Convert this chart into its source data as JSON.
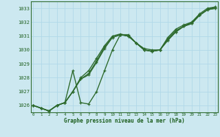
{
  "xlabel": "Graphe pression niveau de la mer (hPa)",
  "bg_color": "#cce8f0",
  "grid_color": "#b0d8e8",
  "line_color": "#2d6a2d",
  "text_color": "#1a5c1a",
  "x_ticks": [
    0,
    1,
    2,
    3,
    4,
    5,
    6,
    7,
    8,
    9,
    10,
    11,
    12,
    13,
    14,
    15,
    16,
    17,
    18,
    19,
    20,
    21,
    22,
    23
  ],
  "y_ticks": [
    1026,
    1027,
    1028,
    1029,
    1030,
    1031,
    1032,
    1033
  ],
  "ylim": [
    1025.5,
    1033.5
  ],
  "xlim": [
    -0.3,
    23.3
  ],
  "series": [
    [
      1026.0,
      1025.8,
      1025.6,
      1026.0,
      1026.2,
      1028.5,
      1026.2,
      1026.1,
      1027.0,
      1028.5,
      1030.0,
      1031.1,
      1031.1,
      1030.5,
      1030.1,
      1030.0,
      1030.0,
      1030.9,
      1031.5,
      1031.8,
      1032.0,
      1032.6,
      1033.0,
      1033.1
    ],
    [
      1026.0,
      1025.8,
      1025.6,
      1026.0,
      1026.2,
      1027.0,
      1028.0,
      1028.5,
      1029.4,
      1030.3,
      1031.0,
      1031.15,
      1031.0,
      1030.5,
      1030.0,
      1029.9,
      1030.0,
      1030.8,
      1031.4,
      1031.7,
      1032.0,
      1032.5,
      1032.9,
      1033.1
    ],
    [
      1026.0,
      1025.8,
      1025.6,
      1026.0,
      1026.2,
      1027.0,
      1027.9,
      1028.3,
      1029.2,
      1030.2,
      1030.9,
      1031.1,
      1031.0,
      1030.5,
      1030.0,
      1029.9,
      1030.0,
      1030.7,
      1031.3,
      1031.7,
      1031.9,
      1032.5,
      1032.9,
      1033.0
    ],
    [
      1026.0,
      1025.8,
      1025.6,
      1026.0,
      1026.2,
      1027.0,
      1027.9,
      1028.2,
      1029.1,
      1030.1,
      1030.9,
      1031.1,
      1031.0,
      1030.5,
      1030.0,
      1029.9,
      1030.0,
      1030.7,
      1031.3,
      1031.7,
      1031.9,
      1032.5,
      1032.9,
      1033.0
    ]
  ]
}
